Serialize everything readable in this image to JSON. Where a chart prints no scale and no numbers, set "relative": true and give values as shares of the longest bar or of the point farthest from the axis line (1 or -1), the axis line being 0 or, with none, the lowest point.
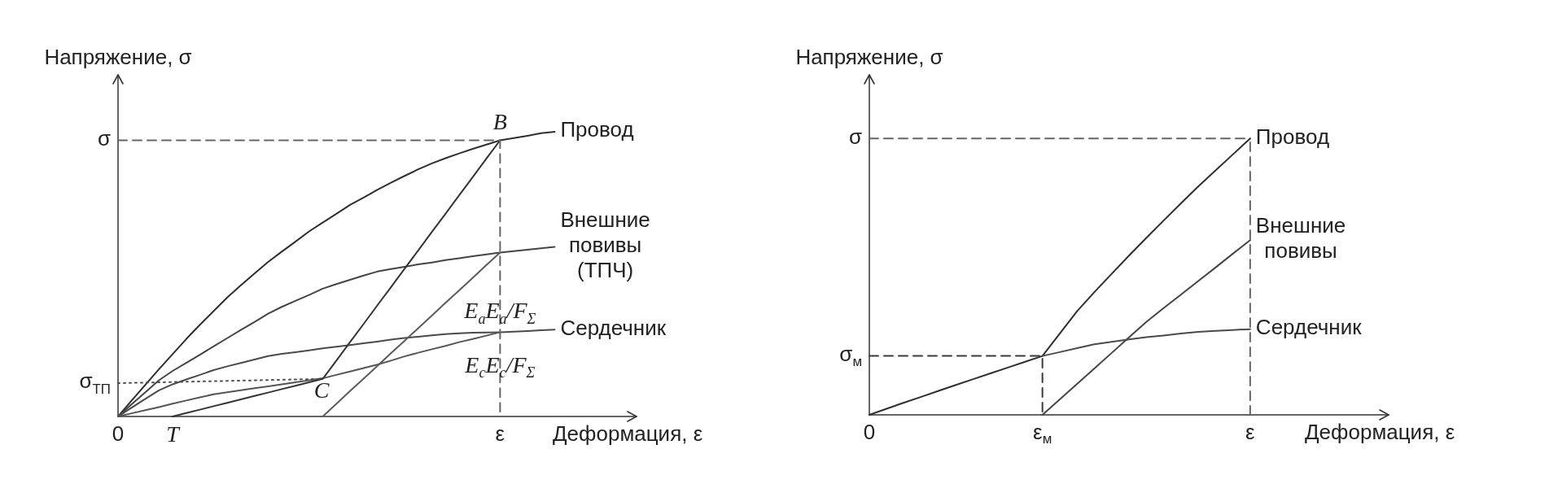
{
  "chart_data": [
    {
      "type": "line",
      "relative": true,
      "xlabel": "Деформация, ε",
      "ylabel": "Напряжение, σ",
      "marker": "none",
      "categories": [
        "0",
        null,
        null,
        null,
        "T",
        null,
        null,
        null,
        null,
        null,
        null,
        null,
        null,
        null,
        null,
        null,
        null,
        null,
        null,
        null,
        null,
        null,
        null,
        null,
        null,
        null,
        null,
        null,
        "ε",
        null,
        null,
        null,
        null,
        null,
        null,
        null,
        null,
        null,
        null
      ],
      "series": [
        {
          "name": "Провод",
          "color": "#2e2e2e",
          "values": [
            0,
            0.056,
            0.111,
            0.166,
            0.219,
            0.272,
            0.322,
            0.37,
            0.418,
            0.461,
            0.502,
            0.543,
            0.579,
            0.614,
            0.65,
            0.681,
            0.712,
            0.743,
            0.769,
            0.796,
            0.821,
            0.845,
            0.868,
            0.889,
            0.907,
            0.924,
            0.94,
            0.955,
            0.97,
            0.978,
            0.986,
            0.995,
            1,
            null,
            null,
            null,
            null,
            null,
            null
          ]
        },
        {
          "name": "Внешние повивы (ТПЧ)",
          "color": "#444444",
          "values": [
            0,
            0.043,
            0.085,
            0.127,
            0.16,
            0.188,
            0.217,
            0.246,
            0.275,
            0.304,
            0.332,
            0.361,
            0.385,
            0.406,
            0.427,
            0.449,
            0.465,
            0.48,
            0.495,
            0.509,
            0.518,
            0.526,
            0.534,
            0.541,
            0.549,
            0.556,
            0.563,
            0.569,
            0.576,
            0.581,
            0.586,
            0.591,
            0.596,
            null,
            null,
            null,
            null,
            null,
            null
          ]
        },
        {
          "name": "Сердечник",
          "color": "#4a4a4a",
          "values": [
            0,
            0.031,
            0.062,
            0.092,
            0.113,
            0.13,
            0.146,
            0.163,
            0.176,
            0.188,
            0.2,
            0.212,
            0.22,
            0.226,
            0.232,
            0.239,
            0.245,
            0.251,
            0.257,
            0.263,
            0.27,
            0.276,
            0.28,
            0.285,
            0.289,
            0.292,
            0.294,
            0.295,
            0.296,
            0.298,
            0.3,
            0.303,
            0.305,
            null,
            null,
            null,
            null,
            null,
            null
          ]
        },
        {
          "color": "#555555",
          "values": [
            0,
            0.011,
            0.022,
            0.033,
            0.045,
            0.056,
            0.067,
            0.078,
            0.085,
            0.092,
            0.099,
            0.106,
            0.113,
            0.12,
            0.127,
            0.134,
            0.146,
            0.158,
            0.17,
            0.182,
            0.196,
            0.211,
            0.224,
            0.236,
            0.248,
            0.261,
            0.272,
            0.284,
            0.296,
            null,
            null,
            null,
            null,
            null,
            null,
            null,
            null,
            null,
            null
          ]
        },
        {
          "color": "#5a5a5a",
          "values": [
            null,
            null,
            null,
            null,
            null,
            null,
            null,
            null,
            null,
            null,
            null,
            null,
            null,
            null,
            null,
            0,
            0.044,
            0.089,
            0.133,
            0.177,
            0.222,
            0.266,
            0.31,
            0.354,
            0.399,
            0.443,
            0.487,
            0.532,
            0.576,
            null,
            null,
            null,
            null,
            null,
            null,
            null,
            null,
            null,
            null
          ]
        },
        {
          "color": "#333333",
          "values": [
            null,
            null,
            null,
            null,
            0,
            0.012,
            0.024,
            0.036,
            0.048,
            0.06,
            0.072,
            0.084,
            0.096,
            0.108,
            0.12,
            0.132,
            0.196,
            0.261,
            0.325,
            0.39,
            0.454,
            0.519,
            0.583,
            0.648,
            0.712,
            0.777,
            0.841,
            0.906,
            0.97,
            null,
            null,
            null,
            null,
            null,
            null,
            null,
            null,
            null,
            null
          ]
        },
        {
          "color": "#505050",
          "line_style": "dotted",
          "values": [
            0.117,
            0.118,
            0.119,
            0.12,
            0.121,
            0.122,
            0.123,
            0.124,
            0.125,
            0.126,
            0.127,
            0.128,
            0.129,
            0.13,
            0.131,
            0.132,
            null,
            null,
            null,
            null,
            null,
            null,
            null,
            null,
            null,
            null,
            null,
            null,
            null,
            null,
            null,
            null,
            null,
            null,
            null,
            null,
            null,
            null,
            null
          ]
        },
        {
          "color": "#666666",
          "line_style": "dashed",
          "x": [
            "0",
            "ε",
            "ε"
          ],
          "values": [
            0.97,
            0.97,
            0
          ]
        }
      ],
      "annotations": [
        {
          "text": "σ",
          "x": "0",
          "y": 0.97
        },
        {
          "text": "B",
          "x": "ε",
          "y": 0.97
        },
        {
          "text": "E$_{a}$E$_{a}$/F$_{Σ}$",
          "x": "ε",
          "y": 0.43
        },
        {
          "text": "E$_{c}$E$_{c}$/F$_{Σ}$",
          "x": "ε",
          "y": 0.24
        },
        {
          "text": "σ$_{ТП}$",
          "x": "0",
          "y": 0.117
        },
        "C"
      ]
    },
    {
      "type": "line",
      "relative": true,
      "xlabel": "Деформация, ε",
      "ylabel": "Напряжение, σ",
      "marker": "none",
      "categories": [
        "0",
        null,
        null,
        null,
        null,
        null,
        null,
        null,
        null,
        null,
        "ε$_{м}$",
        null,
        null,
        null,
        null,
        null,
        null,
        null,
        null,
        null,
        null,
        null,
        "ε",
        null,
        null,
        null,
        null,
        null,
        null,
        null,
        null
      ],
      "series": [
        {
          "name": "Провод",
          "color": "#2e2e2e",
          "values": [
            0,
            0.022,
            0.044,
            0.065,
            0.087,
            0.108,
            0.129,
            0.15,
            0.171,
            0.192,
            0.213,
            0.294,
            0.375,
            0.444,
            0.51,
            0.576,
            0.64,
            0.703,
            0.765,
            0.826,
            0.884,
            0.942,
            1,
            null,
            null,
            null,
            null,
            null,
            null,
            null,
            null
          ]
        },
        {
          "name": "Внешние повивы",
          "color": "#444444",
          "values": [
            null,
            null,
            null,
            null,
            null,
            null,
            null,
            null,
            null,
            null,
            0,
            0.056,
            0.112,
            0.168,
            0.224,
            0.28,
            0.336,
            0.386,
            0.435,
            0.484,
            0.533,
            0.583,
            0.632,
            null,
            null,
            null,
            null,
            null,
            null,
            null,
            null
          ]
        },
        {
          "name": "Сердечник",
          "color": "#4a4a4a",
          "values": [
            null,
            null,
            null,
            null,
            null,
            null,
            null,
            null,
            null,
            null,
            0.213,
            0.227,
            0.241,
            0.255,
            0.264,
            0.273,
            0.281,
            0.287,
            0.294,
            0.3,
            0.304,
            0.307,
            0.31,
            null,
            null,
            null,
            null,
            null,
            null,
            null,
            null
          ]
        },
        {
          "color": "#666666",
          "line_style": "dashed",
          "values": [
            1,
            1,
            1,
            1,
            1,
            1,
            1,
            1,
            1,
            1,
            1,
            1,
            1,
            1,
            1,
            1,
            1,
            1,
            1,
            1,
            1,
            1,
            1,
            null,
            null,
            null,
            null,
            null,
            null,
            null,
            null
          ]
        },
        {
          "color": "#3a3a3a",
          "line_style": "dashed",
          "x": [
            "0",
            "ε$_{м}$",
            "ε$_{м}$"
          ],
          "values": [
            0.213,
            0.213,
            0
          ]
        }
      ],
      "ref_lines": [
        {
          "axis": "x",
          "value": "ε",
          "color": "#666666",
          "line_style": "dashed"
        }
      ],
      "annotations": [
        {
          "text": "σ",
          "x": "0",
          "y": 1
        },
        {
          "text": "σ$_{м}$",
          "x": "0",
          "y": 0.213
        }
      ]
    }
  ]
}
